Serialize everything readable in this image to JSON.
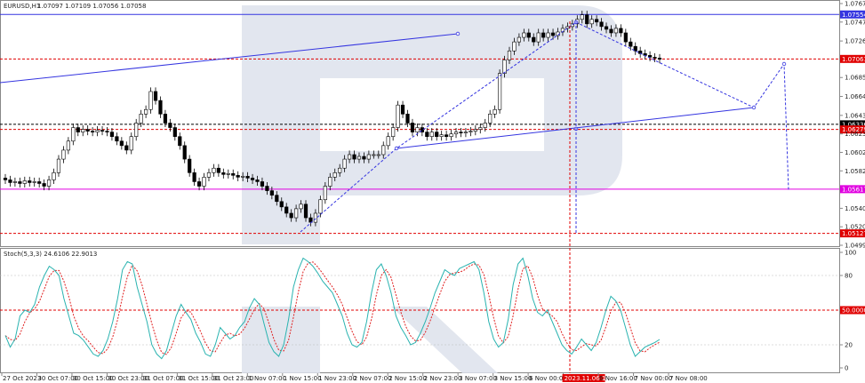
{
  "header": {
    "symbol": "EURUSD,H1",
    "ohlc": "1.07097 1.07109 1.07056 1.07058"
  },
  "chart_data": {
    "type": "candlestick",
    "symbol": "EURUSD",
    "timeframe": "H1",
    "price_axis": {
      "range": [
        1.04995,
        1.07675
      ],
      "ticks": [
        "1.07675",
        "1.07470",
        "1.07260",
        "1.06855",
        "1.06645",
        "1.06435",
        "1.06230",
        "1.06025",
        "1.05820",
        "1.05405",
        "1.05200",
        "1.04995"
      ]
    },
    "time_axis": {
      "labels": [
        "27 Oct 2023",
        "30 Oct 07:00",
        "30 Oct 15:00",
        "30 Oct 23:00",
        "31 Oct 07:00",
        "31 Oct 15:00",
        "31 Oct 23:00",
        "1 Nov 07:00",
        "1 Nov 15:00",
        "1 Nov 23:00",
        "2 Nov 07:00",
        "2 Nov 15:00",
        "2 Nov 23:00",
        "3 Nov 07:00",
        "3 Nov 15:00",
        "6 Nov 00:00",
        "2023.11.06 11:00",
        "6 Nov 16:00",
        "7 Nov 00:00",
        "7 Nov 08:00"
      ],
      "highlighted": "2023.11.06 11:00"
    },
    "closes": [
      1.0572,
      1.0569,
      1.057,
      1.0568,
      1.0571,
      1.0569,
      1.057,
      1.0568,
      1.0565,
      1.0572,
      1.058,
      1.0595,
      1.0605,
      1.0615,
      1.063,
      1.0625,
      1.0628,
      1.0626,
      1.0625,
      1.0627,
      1.0626,
      1.0625,
      1.062,
      1.0615,
      1.061,
      1.0605,
      1.062,
      1.0635,
      1.0645,
      1.065,
      1.067,
      1.066,
      1.0645,
      1.0635,
      1.063,
      1.062,
      1.061,
      1.0595,
      1.058,
      1.057,
      1.0565,
      1.0575,
      1.058,
      1.0585,
      1.058,
      1.0578,
      1.0579,
      1.0577,
      1.0575,
      1.0576,
      1.0574,
      1.0572,
      1.057,
      1.0565,
      1.056,
      1.0555,
      1.0548,
      1.0542,
      1.0535,
      1.053,
      1.054,
      1.0545,
      1.053,
      1.0525,
      1.0535,
      1.055,
      1.0565,
      1.0575,
      1.058,
      1.0585,
      1.0595,
      1.06,
      1.0595,
      1.0598,
      1.0595,
      1.06,
      1.06,
      1.06,
      1.061,
      1.062,
      1.063,
      1.0655,
      1.0645,
      1.0635,
      1.0625,
      1.063,
      1.0625,
      1.062,
      1.0625,
      1.062,
      1.0622,
      1.062,
      1.0623,
      1.0625,
      1.0624,
      1.0625,
      1.0626,
      1.0628,
      1.063,
      1.0635,
      1.0645,
      1.065,
      1.069,
      1.0705,
      1.0715,
      1.0725,
      1.073,
      1.0735,
      1.073,
      1.0725,
      1.0735,
      1.073,
      1.0735,
      1.0732,
      1.0736,
      1.074,
      1.0742,
      1.0745,
      1.075,
      1.0755,
      1.0745,
      1.075,
      1.0747,
      1.0742,
      1.0739,
      1.0735,
      1.074,
      1.0735,
      1.0725,
      1.072,
      1.0715,
      1.0712,
      1.071,
      1.0708,
      1.0707,
      1.07058
    ],
    "levels": [
      {
        "price": 1.07554,
        "label": "1.07554",
        "color": "#3535e0",
        "style": "solid"
      },
      {
        "price": 1.07061,
        "label": "1.07061",
        "color": "#e00000",
        "style": "dashed"
      },
      {
        "price": 1.06336,
        "label": "1.06336",
        "color": "#000000",
        "style": "dashed"
      },
      {
        "price": 1.06279,
        "label": "1.06279",
        "color": "#e00000",
        "style": "dashed"
      },
      {
        "price": 1.05617,
        "label": "1.05617",
        "color": "#e000e0",
        "style": "solid"
      },
      {
        "price": 1.05127,
        "label": "1.05127",
        "color": "#e00000",
        "style": "dashed"
      }
    ],
    "stochastic": {
      "title": "Stoch(5,3,3) 24.6106 22.9013",
      "main_value": 24.6106,
      "signal_value": 22.9013,
      "ticks": [
        "100",
        "80",
        "50.0000",
        "20",
        "0"
      ],
      "main_color": "#2ab3b0",
      "signal_color": "#e02020",
      "main": [
        28,
        18,
        25,
        45,
        50,
        48,
        55,
        70,
        80,
        88,
        85,
        80,
        60,
        45,
        30,
        28,
        24,
        18,
        12,
        10,
        15,
        25,
        40,
        60,
        85,
        92,
        90,
        70,
        55,
        40,
        20,
        12,
        8,
        15,
        30,
        45,
        55,
        48,
        42,
        30,
        22,
        12,
        10,
        20,
        35,
        30,
        25,
        28,
        35,
        40,
        52,
        60,
        55,
        38,
        22,
        14,
        10,
        20,
        42,
        70,
        85,
        95,
        92,
        88,
        82,
        75,
        70,
        65,
        55,
        45,
        30,
        20,
        18,
        22,
        40,
        65,
        85,
        90,
        80,
        65,
        45,
        35,
        28,
        20,
        22,
        30,
        40,
        52,
        65,
        75,
        85,
        82,
        80,
        86,
        88,
        90,
        92,
        85,
        65,
        40,
        25,
        18,
        22,
        42,
        72,
        90,
        95,
        80,
        60,
        48,
        45,
        50,
        40,
        30,
        20,
        15,
        12,
        18,
        25,
        20,
        15,
        22,
        35,
        50,
        62,
        58,
        50,
        35,
        20,
        10,
        14,
        18,
        20,
        22,
        24.6
      ]
    },
    "colors": {
      "trend": "#3535e0",
      "candle": "#000000",
      "bg": "#ffffff"
    }
  }
}
